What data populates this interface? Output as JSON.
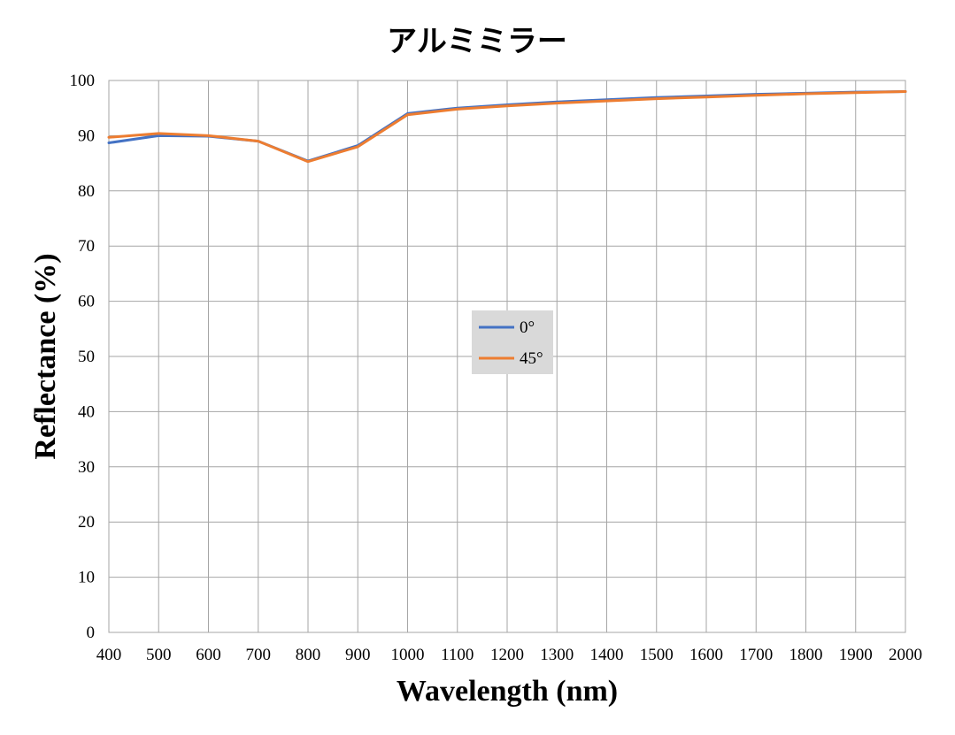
{
  "chart_data": {
    "type": "line",
    "title": "アルミミラー",
    "xlabel": "Wavelength (nm)",
    "ylabel": "Reflectance (%)",
    "xlim": [
      400,
      2000
    ],
    "ylim": [
      0,
      100
    ],
    "x_ticks": [
      "400",
      "500",
      "600",
      "700",
      "800",
      "900",
      "1000",
      "1100",
      "1200",
      "1300",
      "1400",
      "1500",
      "1600",
      "1700",
      "1800",
      "1900",
      "2000"
    ],
    "y_ticks": [
      "0",
      "10",
      "20",
      "30",
      "40",
      "50",
      "60",
      "70",
      "80",
      "90",
      "100"
    ],
    "grid": true,
    "legend_position": "center",
    "x": [
      400,
      500,
      600,
      700,
      800,
      900,
      1000,
      1100,
      1200,
      1300,
      1400,
      1500,
      1600,
      1700,
      1800,
      1900,
      2000
    ],
    "series": [
      {
        "name": "0°",
        "color": "#4472c4",
        "values": [
          88.7,
          90.0,
          89.9,
          89.0,
          85.4,
          88.2,
          94.0,
          95.0,
          95.6,
          96.1,
          96.5,
          96.9,
          97.2,
          97.5,
          97.7,
          97.9,
          98.0
        ]
      },
      {
        "name": "45°",
        "color": "#ed7d31",
        "values": [
          89.7,
          90.4,
          90.0,
          89.0,
          85.3,
          88.0,
          93.8,
          94.8,
          95.4,
          95.9,
          96.3,
          96.7,
          97.0,
          97.3,
          97.6,
          97.8,
          98.0
        ]
      }
    ]
  }
}
